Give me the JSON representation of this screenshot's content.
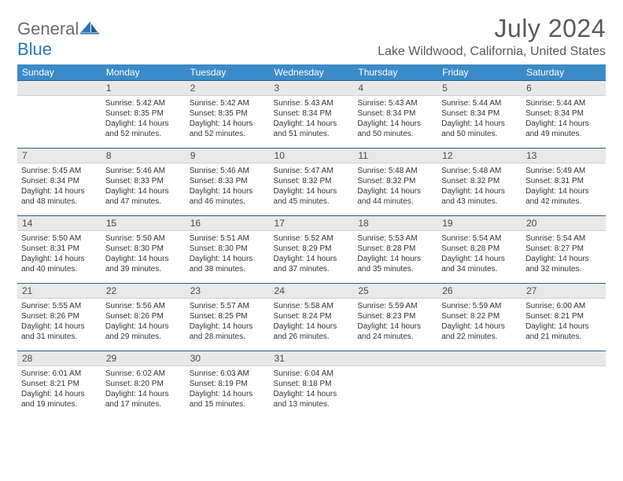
{
  "logo": {
    "text1": "General",
    "text2": "Blue"
  },
  "title": "July 2024",
  "location": "Lake Wildwood, California, United States",
  "header_color": "#3b8bc8",
  "daynum_bg": "#e8e8e8",
  "daynum_border_top": "#2e5f8a",
  "day_headers": [
    "Sunday",
    "Monday",
    "Tuesday",
    "Wednesday",
    "Thursday",
    "Friday",
    "Saturday"
  ],
  "weeks": [
    [
      {
        "n": "",
        "sr": "",
        "ss": "",
        "dl": ""
      },
      {
        "n": "1",
        "sr": "Sunrise: 5:42 AM",
        "ss": "Sunset: 8:35 PM",
        "dl": "Daylight: 14 hours and 52 minutes."
      },
      {
        "n": "2",
        "sr": "Sunrise: 5:42 AM",
        "ss": "Sunset: 8:35 PM",
        "dl": "Daylight: 14 hours and 52 minutes."
      },
      {
        "n": "3",
        "sr": "Sunrise: 5:43 AM",
        "ss": "Sunset: 8:34 PM",
        "dl": "Daylight: 14 hours and 51 minutes."
      },
      {
        "n": "4",
        "sr": "Sunrise: 5:43 AM",
        "ss": "Sunset: 8:34 PM",
        "dl": "Daylight: 14 hours and 50 minutes."
      },
      {
        "n": "5",
        "sr": "Sunrise: 5:44 AM",
        "ss": "Sunset: 8:34 PM",
        "dl": "Daylight: 14 hours and 50 minutes."
      },
      {
        "n": "6",
        "sr": "Sunrise: 5:44 AM",
        "ss": "Sunset: 8:34 PM",
        "dl": "Daylight: 14 hours and 49 minutes."
      }
    ],
    [
      {
        "n": "7",
        "sr": "Sunrise: 5:45 AM",
        "ss": "Sunset: 8:34 PM",
        "dl": "Daylight: 14 hours and 48 minutes."
      },
      {
        "n": "8",
        "sr": "Sunrise: 5:46 AM",
        "ss": "Sunset: 8:33 PM",
        "dl": "Daylight: 14 hours and 47 minutes."
      },
      {
        "n": "9",
        "sr": "Sunrise: 5:46 AM",
        "ss": "Sunset: 8:33 PM",
        "dl": "Daylight: 14 hours and 46 minutes."
      },
      {
        "n": "10",
        "sr": "Sunrise: 5:47 AM",
        "ss": "Sunset: 8:32 PM",
        "dl": "Daylight: 14 hours and 45 minutes."
      },
      {
        "n": "11",
        "sr": "Sunrise: 5:48 AM",
        "ss": "Sunset: 8:32 PM",
        "dl": "Daylight: 14 hours and 44 minutes."
      },
      {
        "n": "12",
        "sr": "Sunrise: 5:48 AM",
        "ss": "Sunset: 8:32 PM",
        "dl": "Daylight: 14 hours and 43 minutes."
      },
      {
        "n": "13",
        "sr": "Sunrise: 5:49 AM",
        "ss": "Sunset: 8:31 PM",
        "dl": "Daylight: 14 hours and 42 minutes."
      }
    ],
    [
      {
        "n": "14",
        "sr": "Sunrise: 5:50 AM",
        "ss": "Sunset: 8:31 PM",
        "dl": "Daylight: 14 hours and 40 minutes."
      },
      {
        "n": "15",
        "sr": "Sunrise: 5:50 AM",
        "ss": "Sunset: 8:30 PM",
        "dl": "Daylight: 14 hours and 39 minutes."
      },
      {
        "n": "16",
        "sr": "Sunrise: 5:51 AM",
        "ss": "Sunset: 8:30 PM",
        "dl": "Daylight: 14 hours and 38 minutes."
      },
      {
        "n": "17",
        "sr": "Sunrise: 5:52 AM",
        "ss": "Sunset: 8:29 PM",
        "dl": "Daylight: 14 hours and 37 minutes."
      },
      {
        "n": "18",
        "sr": "Sunrise: 5:53 AM",
        "ss": "Sunset: 8:28 PM",
        "dl": "Daylight: 14 hours and 35 minutes."
      },
      {
        "n": "19",
        "sr": "Sunrise: 5:54 AM",
        "ss": "Sunset: 8:28 PM",
        "dl": "Daylight: 14 hours and 34 minutes."
      },
      {
        "n": "20",
        "sr": "Sunrise: 5:54 AM",
        "ss": "Sunset: 8:27 PM",
        "dl": "Daylight: 14 hours and 32 minutes."
      }
    ],
    [
      {
        "n": "21",
        "sr": "Sunrise: 5:55 AM",
        "ss": "Sunset: 8:26 PM",
        "dl": "Daylight: 14 hours and 31 minutes."
      },
      {
        "n": "22",
        "sr": "Sunrise: 5:56 AM",
        "ss": "Sunset: 8:26 PM",
        "dl": "Daylight: 14 hours and 29 minutes."
      },
      {
        "n": "23",
        "sr": "Sunrise: 5:57 AM",
        "ss": "Sunset: 8:25 PM",
        "dl": "Daylight: 14 hours and 28 minutes."
      },
      {
        "n": "24",
        "sr": "Sunrise: 5:58 AM",
        "ss": "Sunset: 8:24 PM",
        "dl": "Daylight: 14 hours and 26 minutes."
      },
      {
        "n": "25",
        "sr": "Sunrise: 5:59 AM",
        "ss": "Sunset: 8:23 PM",
        "dl": "Daylight: 14 hours and 24 minutes."
      },
      {
        "n": "26",
        "sr": "Sunrise: 5:59 AM",
        "ss": "Sunset: 8:22 PM",
        "dl": "Daylight: 14 hours and 22 minutes."
      },
      {
        "n": "27",
        "sr": "Sunrise: 6:00 AM",
        "ss": "Sunset: 8:21 PM",
        "dl": "Daylight: 14 hours and 21 minutes."
      }
    ],
    [
      {
        "n": "28",
        "sr": "Sunrise: 6:01 AM",
        "ss": "Sunset: 8:21 PM",
        "dl": "Daylight: 14 hours and 19 minutes."
      },
      {
        "n": "29",
        "sr": "Sunrise: 6:02 AM",
        "ss": "Sunset: 8:20 PM",
        "dl": "Daylight: 14 hours and 17 minutes."
      },
      {
        "n": "30",
        "sr": "Sunrise: 6:03 AM",
        "ss": "Sunset: 8:19 PM",
        "dl": "Daylight: 14 hours and 15 minutes."
      },
      {
        "n": "31",
        "sr": "Sunrise: 6:04 AM",
        "ss": "Sunset: 8:18 PM",
        "dl": "Daylight: 14 hours and 13 minutes."
      },
      {
        "n": "",
        "sr": "",
        "ss": "",
        "dl": ""
      },
      {
        "n": "",
        "sr": "",
        "ss": "",
        "dl": ""
      },
      {
        "n": "",
        "sr": "",
        "ss": "",
        "dl": ""
      }
    ]
  ]
}
